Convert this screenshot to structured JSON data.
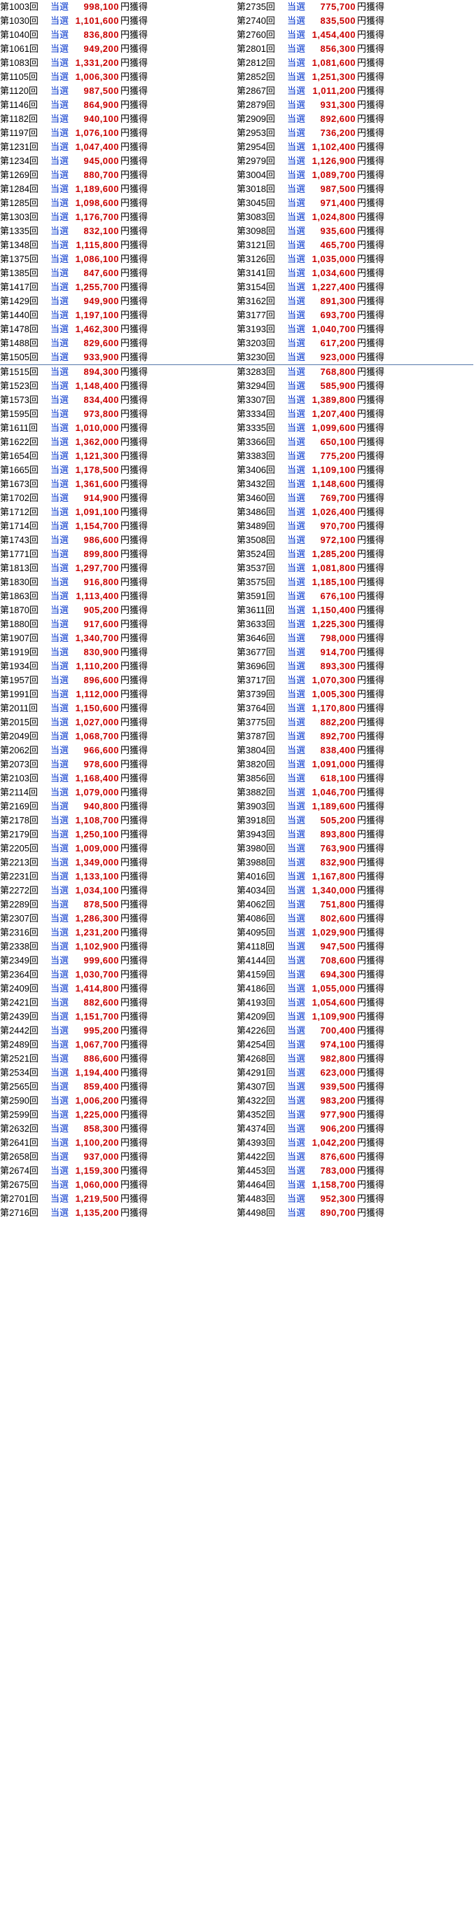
{
  "win_label": "当選",
  "suffix_label": "円獲得",
  "divider_after_index": 21,
  "left": [
    {
      "r": 1003,
      "a": "998,100"
    },
    {
      "r": 1030,
      "a": "1,101,600"
    },
    {
      "r": 1040,
      "a": "836,800"
    },
    {
      "r": 1061,
      "a": "949,200"
    },
    {
      "r": 1083,
      "a": "1,331,200"
    },
    {
      "r": 1105,
      "a": "1,006,300"
    },
    {
      "r": 1120,
      "a": "987,500"
    },
    {
      "r": 1146,
      "a": "864,900"
    },
    {
      "r": 1182,
      "a": "940,100"
    },
    {
      "r": 1197,
      "a": "1,076,100"
    },
    {
      "r": 1231,
      "a": "1,047,400"
    },
    {
      "r": 1234,
      "a": "945,000"
    },
    {
      "r": 1269,
      "a": "880,700"
    },
    {
      "r": 1284,
      "a": "1,189,600"
    },
    {
      "r": 1285,
      "a": "1,098,600"
    },
    {
      "r": 1303,
      "a": "1,176,700"
    },
    {
      "r": 1335,
      "a": "832,100"
    },
    {
      "r": 1348,
      "a": "1,115,800"
    },
    {
      "r": 1375,
      "a": "1,086,100"
    },
    {
      "r": 1385,
      "a": "847,600"
    },
    {
      "r": 1417,
      "a": "1,255,700"
    },
    {
      "r": 1429,
      "a": "949,900"
    },
    {
      "r": 1440,
      "a": "1,197,100"
    },
    {
      "r": 1478,
      "a": "1,462,300"
    },
    {
      "r": 1488,
      "a": "829,600"
    },
    {
      "r": 1505,
      "a": "933,900"
    },
    {
      "r": 1515,
      "a": "894,300"
    },
    {
      "r": 1523,
      "a": "1,148,400"
    },
    {
      "r": 1573,
      "a": "834,400"
    },
    {
      "r": 1595,
      "a": "973,800"
    },
    {
      "r": 1611,
      "a": "1,010,000"
    },
    {
      "r": 1622,
      "a": "1,362,000"
    },
    {
      "r": 1654,
      "a": "1,121,300"
    },
    {
      "r": 1665,
      "a": "1,178,500"
    },
    {
      "r": 1673,
      "a": "1,361,600"
    },
    {
      "r": 1702,
      "a": "914,900"
    },
    {
      "r": 1712,
      "a": "1,091,100"
    },
    {
      "r": 1714,
      "a": "1,154,700"
    },
    {
      "r": 1743,
      "a": "986,600"
    },
    {
      "r": 1771,
      "a": "899,800"
    },
    {
      "r": 1813,
      "a": "1,297,700"
    },
    {
      "r": 1830,
      "a": "916,800"
    },
    {
      "r": 1863,
      "a": "1,113,400"
    },
    {
      "r": 1870,
      "a": "905,200"
    },
    {
      "r": 1880,
      "a": "917,600"
    },
    {
      "r": 1907,
      "a": "1,340,700"
    },
    {
      "r": 1919,
      "a": "830,900"
    },
    {
      "r": 1934,
      "a": "1,110,200"
    },
    {
      "r": 1957,
      "a": "896,600"
    },
    {
      "r": 1991,
      "a": "1,112,000"
    },
    {
      "r": 2011,
      "a": "1,150,600"
    },
    {
      "r": 2015,
      "a": "1,027,000"
    },
    {
      "r": 2049,
      "a": "1,068,700"
    },
    {
      "r": 2062,
      "a": "966,600"
    },
    {
      "r": 2073,
      "a": "978,600"
    },
    {
      "r": 2103,
      "a": "1,168,400"
    },
    {
      "r": 2114,
      "a": "1,079,000"
    },
    {
      "r": 2169,
      "a": "940,800"
    },
    {
      "r": 2178,
      "a": "1,108,700"
    },
    {
      "r": 2179,
      "a": "1,250,100"
    },
    {
      "r": 2205,
      "a": "1,009,000"
    },
    {
      "r": 2213,
      "a": "1,349,000"
    },
    {
      "r": 2231,
      "a": "1,133,100"
    },
    {
      "r": 2272,
      "a": "1,034,100"
    },
    {
      "r": 2289,
      "a": "878,500"
    },
    {
      "r": 2307,
      "a": "1,286,300"
    },
    {
      "r": 2316,
      "a": "1,231,200"
    },
    {
      "r": 2338,
      "a": "1,102,900"
    },
    {
      "r": 2349,
      "a": "999,600"
    },
    {
      "r": 2364,
      "a": "1,030,700"
    },
    {
      "r": 2409,
      "a": "1,414,800"
    },
    {
      "r": 2421,
      "a": "882,600"
    },
    {
      "r": 2439,
      "a": "1,151,700"
    },
    {
      "r": 2442,
      "a": "995,200"
    },
    {
      "r": 2489,
      "a": "1,067,700"
    },
    {
      "r": 2521,
      "a": "886,600"
    },
    {
      "r": 2534,
      "a": "1,194,400"
    },
    {
      "r": 2565,
      "a": "859,400"
    },
    {
      "r": 2590,
      "a": "1,006,200"
    },
    {
      "r": 2599,
      "a": "1,225,000"
    },
    {
      "r": 2632,
      "a": "858,300"
    },
    {
      "r": 2641,
      "a": "1,100,200"
    },
    {
      "r": 2658,
      "a": "937,000"
    },
    {
      "r": 2674,
      "a": "1,159,300"
    },
    {
      "r": 2675,
      "a": "1,060,000"
    },
    {
      "r": 2701,
      "a": "1,219,500"
    },
    {
      "r": 2716,
      "a": "1,135,200"
    }
  ],
  "right": [
    {
      "r": 2735,
      "a": "775,700"
    },
    {
      "r": 2740,
      "a": "835,500"
    },
    {
      "r": 2760,
      "a": "1,454,400"
    },
    {
      "r": 2801,
      "a": "856,300"
    },
    {
      "r": 2812,
      "a": "1,081,600"
    },
    {
      "r": 2852,
      "a": "1,251,300"
    },
    {
      "r": 2867,
      "a": "1,011,200"
    },
    {
      "r": 2879,
      "a": "931,300"
    },
    {
      "r": 2909,
      "a": "892,600"
    },
    {
      "r": 2953,
      "a": "736,200"
    },
    {
      "r": 2954,
      "a": "1,102,400"
    },
    {
      "r": 2979,
      "a": "1,126,900"
    },
    {
      "r": 3004,
      "a": "1,089,700"
    },
    {
      "r": 3018,
      "a": "987,500"
    },
    {
      "r": 3045,
      "a": "971,400"
    },
    {
      "r": 3083,
      "a": "1,024,800"
    },
    {
      "r": 3098,
      "a": "935,600"
    },
    {
      "r": 3121,
      "a": "465,700"
    },
    {
      "r": 3126,
      "a": "1,035,000"
    },
    {
      "r": 3141,
      "a": "1,034,600"
    },
    {
      "r": 3154,
      "a": "1,227,400"
    },
    {
      "r": 3162,
      "a": "891,300"
    },
    {
      "r": 3177,
      "a": "693,700"
    },
    {
      "r": 3193,
      "a": "1,040,700"
    },
    {
      "r": 3203,
      "a": "617,200"
    },
    {
      "r": 3230,
      "a": "923,000"
    },
    {
      "r": 3283,
      "a": "768,800"
    },
    {
      "r": 3294,
      "a": "585,900"
    },
    {
      "r": 3307,
      "a": "1,389,800"
    },
    {
      "r": 3334,
      "a": "1,207,400"
    },
    {
      "r": 3335,
      "a": "1,099,600"
    },
    {
      "r": 3366,
      "a": "650,100"
    },
    {
      "r": 3383,
      "a": "775,200"
    },
    {
      "r": 3406,
      "a": "1,109,100"
    },
    {
      "r": 3432,
      "a": "1,148,600"
    },
    {
      "r": 3460,
      "a": "769,700"
    },
    {
      "r": 3486,
      "a": "1,026,400"
    },
    {
      "r": 3489,
      "a": "970,700"
    },
    {
      "r": 3508,
      "a": "972,100"
    },
    {
      "r": 3524,
      "a": "1,285,200"
    },
    {
      "r": 3537,
      "a": "1,081,800"
    },
    {
      "r": 3575,
      "a": "1,185,100"
    },
    {
      "r": 3591,
      "a": "676,100"
    },
    {
      "r": 3611,
      "a": "1,150,400"
    },
    {
      "r": 3633,
      "a": "1,225,300"
    },
    {
      "r": 3646,
      "a": "798,000"
    },
    {
      "r": 3677,
      "a": "914,700"
    },
    {
      "r": 3696,
      "a": "893,300"
    },
    {
      "r": 3717,
      "a": "1,070,300"
    },
    {
      "r": 3739,
      "a": "1,005,300"
    },
    {
      "r": 3764,
      "a": "1,170,800"
    },
    {
      "r": 3775,
      "a": "882,200"
    },
    {
      "r": 3787,
      "a": "892,700"
    },
    {
      "r": 3804,
      "a": "838,400"
    },
    {
      "r": 3820,
      "a": "1,091,000"
    },
    {
      "r": 3856,
      "a": "618,100"
    },
    {
      "r": 3882,
      "a": "1,046,700"
    },
    {
      "r": 3903,
      "a": "1,189,600"
    },
    {
      "r": 3918,
      "a": "505,200"
    },
    {
      "r": 3943,
      "a": "893,800"
    },
    {
      "r": 3980,
      "a": "763,900"
    },
    {
      "r": 3988,
      "a": "832,900"
    },
    {
      "r": 4016,
      "a": "1,167,800"
    },
    {
      "r": 4034,
      "a": "1,340,000"
    },
    {
      "r": 4062,
      "a": "751,800"
    },
    {
      "r": 4086,
      "a": "802,600"
    },
    {
      "r": 4095,
      "a": "1,029,900"
    },
    {
      "r": 4118,
      "a": "947,500"
    },
    {
      "r": 4144,
      "a": "708,600"
    },
    {
      "r": 4159,
      "a": "694,300"
    },
    {
      "r": 4186,
      "a": "1,055,000"
    },
    {
      "r": 4193,
      "a": "1,054,600"
    },
    {
      "r": 4209,
      "a": "1,109,900"
    },
    {
      "r": 4226,
      "a": "700,400"
    },
    {
      "r": 4254,
      "a": "974,100"
    },
    {
      "r": 4268,
      "a": "982,800"
    },
    {
      "r": 4291,
      "a": "623,000"
    },
    {
      "r": 4307,
      "a": "939,500"
    },
    {
      "r": 4322,
      "a": "983,200"
    },
    {
      "r": 4352,
      "a": "977,900"
    },
    {
      "r": 4374,
      "a": "906,200"
    },
    {
      "r": 4393,
      "a": "1,042,200"
    },
    {
      "r": 4422,
      "a": "876,600"
    },
    {
      "r": 4453,
      "a": "783,000"
    },
    {
      "r": 4464,
      "a": "1,158,700"
    },
    {
      "r": 4483,
      "a": "952,300"
    },
    {
      "r": 4498,
      "a": "890,700"
    }
  ]
}
